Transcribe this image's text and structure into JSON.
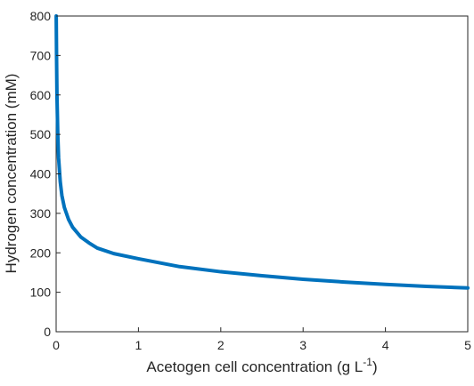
{
  "chart_data": {
    "type": "line",
    "title": "",
    "xlabel": "Acetogen cell concentration (g L",
    "xlabel_sup": "-1",
    "xlabel_end": ")",
    "ylabel": "Hydrogen concentration (mM)",
    "xlim": [
      0,
      5
    ],
    "ylim": [
      0,
      800
    ],
    "xticks": [
      "0",
      "1",
      "2",
      "3",
      "4",
      "5"
    ],
    "yticks": [
      "0",
      "100",
      "200",
      "300",
      "400",
      "500",
      "600",
      "700",
      "800"
    ],
    "grid": false,
    "legend": "none",
    "series": [
      {
        "color": "#0072BD",
        "x": [
          0.001,
          0.005,
          0.01,
          0.02,
          0.03,
          0.05,
          0.07,
          0.1,
          0.15,
          0.2,
          0.3,
          0.4,
          0.5,
          0.7,
          1.0,
          1.5,
          2.0,
          2.5,
          3.0,
          3.5,
          4.0,
          4.5,
          5.0
        ],
        "y": [
          800,
          700,
          600,
          500,
          440,
          380,
          345,
          315,
          285,
          265,
          240,
          225,
          212,
          198,
          185,
          165,
          152,
          142,
          133,
          126,
          120,
          115,
          111
        ]
      }
    ]
  }
}
